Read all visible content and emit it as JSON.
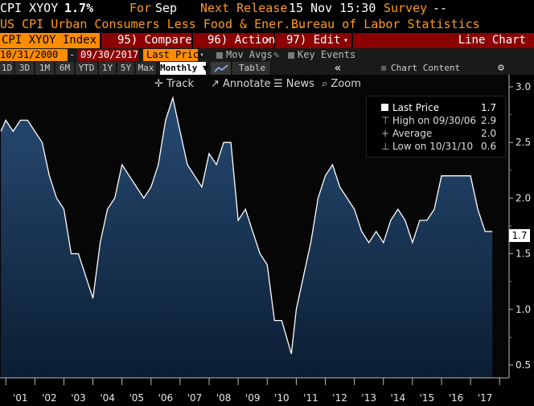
{
  "ticker": {
    "symbol": "CPI XYOY",
    "value": "1.7%",
    "for_label": "For",
    "for_value": "Sep",
    "next_label": "Next Release",
    "next_value": "15 Nov 15:30",
    "survey_label": "Survey",
    "survey_value": "--"
  },
  "description": {
    "name": "US CPI Urban Consumers Less Food & Ener...",
    "source": "Bureau of Labor Statistics"
  },
  "function_bar": {
    "security": "CPI XYOY Index",
    "compare_num": "95)",
    "compare": "Compare",
    "actions_num": "96)",
    "actions": "Actions",
    "edit_num": "97)",
    "edit": "Edit",
    "edit_caret": "▾",
    "actions_caret": "▾",
    "chart_type": "Line Chart"
  },
  "date_bar": {
    "start": "10/31/2000",
    "dash": "-",
    "end": "09/30/2017",
    "price_field": "Last Price",
    "mov_avgs": "Mov Avgs",
    "key_events": "Key Events"
  },
  "period_bar": {
    "periods": [
      "1D",
      "3D",
      "1M",
      "6M",
      "YTD",
      "1Y",
      "5Y",
      "Max"
    ],
    "frequency": "Monthly ▼",
    "table": "Table",
    "collapse": "«",
    "chart_content": "Chart Content",
    "settings_icon": "⚙"
  },
  "tools": {
    "track": "Track",
    "annotate": "Annotate",
    "news": "News",
    "zoom": "Zoom"
  },
  "legend": {
    "last_price_label": "Last Price",
    "last_price_value": "1.7",
    "high_label": "High on 09/30/06",
    "high_value": "2.9",
    "average_label": "Average",
    "average_value": "2.0",
    "low_label": "Low on 10/31/10",
    "low_value": "0.6"
  },
  "last_value_tag": "1.7",
  "colors": {
    "amber": "#ff9a1a",
    "function_red": "#8b0000",
    "function_orange": "#ff8c00",
    "line": "#ffffff",
    "area_top": "#274a72",
    "area_bottom": "#0b1e33"
  },
  "chart_data": {
    "type": "area",
    "title": "",
    "xlabel": "",
    "ylabel": "",
    "ylim": [
      0.4,
      3.1
    ],
    "yticks": [
      "3.0",
      "2.5",
      "2.0",
      "1.5",
      "1.0",
      "0.5"
    ],
    "ytick_values": [
      3.0,
      2.5,
      2.0,
      1.5,
      1.0,
      0.5
    ],
    "xticks": [
      "'01",
      "'02",
      "'03",
      "'04",
      "'05",
      "'06",
      "'07",
      "'08",
      "'09",
      "'10",
      "'11",
      "'12",
      "'13",
      "'14",
      "'15",
      "'16",
      "'17"
    ],
    "xtick_values": [
      2001,
      2002,
      2003,
      2004,
      2005,
      2006,
      2007,
      2008,
      2009,
      2010,
      2011,
      2012,
      2013,
      2014,
      2015,
      2016,
      2017
    ],
    "series": [
      {
        "x": [
          2000.83,
          2001.0,
          2001.25,
          2001.5,
          2001.75,
          2002.0,
          2002.25,
          2002.5,
          2002.75,
          2003.0,
          2003.25,
          2003.5,
          2003.75,
          2004.0,
          2004.25,
          2004.5,
          2004.75,
          2005.0,
          2005.25,
          2005.5,
          2005.75,
          2006.0,
          2006.25,
          2006.5,
          2006.75,
          2007.0,
          2007.25,
          2007.5,
          2007.75,
          2008.0,
          2008.25,
          2008.5,
          2008.75,
          2009.0,
          2009.25,
          2009.5,
          2009.75,
          2010.0,
          2010.25,
          2010.5,
          2010.83,
          2011.0,
          2011.25,
          2011.5,
          2011.75,
          2012.0,
          2012.25,
          2012.5,
          2012.75,
          2013.0,
          2013.25,
          2013.5,
          2013.75,
          2014.0,
          2014.25,
          2014.5,
          2014.75,
          2015.0,
          2015.25,
          2015.5,
          2015.75,
          2016.0,
          2016.25,
          2016.5,
          2016.75,
          2017.0,
          2017.25,
          2017.5,
          2017.75
        ],
        "values": [
          2.6,
          2.7,
          2.6,
          2.7,
          2.7,
          2.6,
          2.5,
          2.2,
          2.0,
          1.9,
          1.5,
          1.5,
          1.3,
          1.1,
          1.6,
          1.9,
          2.0,
          2.3,
          2.2,
          2.1,
          2.0,
          2.1,
          2.3,
          2.7,
          2.9,
          2.6,
          2.3,
          2.2,
          2.1,
          2.4,
          2.3,
          2.5,
          2.5,
          1.8,
          1.9,
          1.7,
          1.5,
          1.4,
          0.9,
          0.9,
          0.6,
          1.0,
          1.3,
          1.6,
          2.0,
          2.2,
          2.3,
          2.1,
          2.0,
          1.9,
          1.7,
          1.6,
          1.7,
          1.6,
          1.8,
          1.9,
          1.8,
          1.6,
          1.8,
          1.8,
          1.9,
          2.2,
          2.2,
          2.2,
          2.2,
          2.2,
          1.9,
          1.7,
          1.7
        ]
      }
    ],
    "ylabel_side": "right",
    "grid": false,
    "legend_position": "top-right"
  }
}
